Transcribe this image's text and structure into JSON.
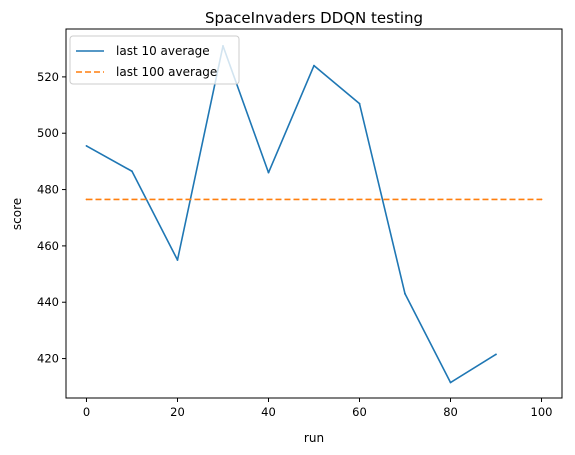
{
  "chart_data": {
    "type": "line",
    "title": "SpaceInvaders DDQN testing",
    "xlabel": "run",
    "ylabel": "score",
    "xlim": [
      -4.5,
      104.5
    ],
    "ylim": [
      406,
      537
    ],
    "xticks": [
      0,
      20,
      40,
      60,
      80,
      100
    ],
    "yticks": [
      420,
      440,
      460,
      480,
      500,
      520
    ],
    "grid": false,
    "legend_position": "top-left",
    "series": [
      {
        "name": "last 10 average",
        "style": "solid",
        "color": "#1f77b4",
        "x": [
          0,
          10,
          20,
          30,
          40,
          50,
          60,
          70,
          80,
          90
        ],
        "y": [
          495.5,
          486.5,
          455,
          531,
          486,
          524,
          510.5,
          443,
          411.5,
          421.5
        ]
      },
      {
        "name": "last 100 average",
        "style": "dashed",
        "color": "#ff7f0e",
        "x": [
          0,
          100
        ],
        "y": [
          476.5,
          476.5
        ]
      }
    ]
  }
}
